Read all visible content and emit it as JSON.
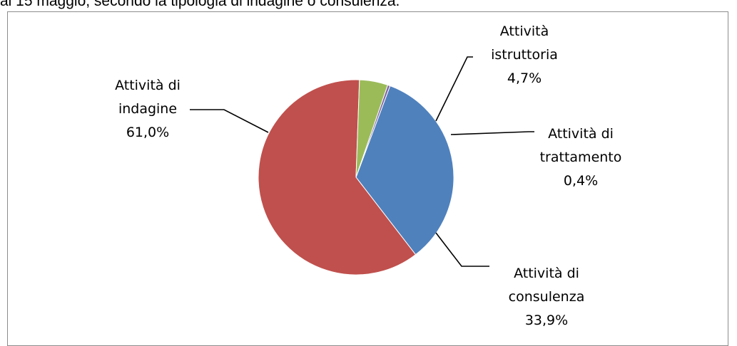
{
  "caption": "al 15 maggio, secondo la tipologia di indagine o consulenza.",
  "chart_data": {
    "type": "pie",
    "slices": [
      {
        "label_lines": [
          "Attività di",
          "consulenza"
        ],
        "value": 33.9,
        "value_label": "33,9%",
        "color": "#4f81bd"
      },
      {
        "label_lines": [
          "Attività di",
          "indagine"
        ],
        "value": 61.0,
        "value_label": "61,0%",
        "color": "#c0504d"
      },
      {
        "label_lines": [
          "Attività",
          "istruttoria"
        ],
        "value": 4.7,
        "value_label": "4,7%",
        "color": "#9bbb59"
      },
      {
        "label_lines": [
          "Attività di",
          "trattamento"
        ],
        "value": 0.4,
        "value_label": "0,4%",
        "color": "#8064a2"
      }
    ]
  }
}
